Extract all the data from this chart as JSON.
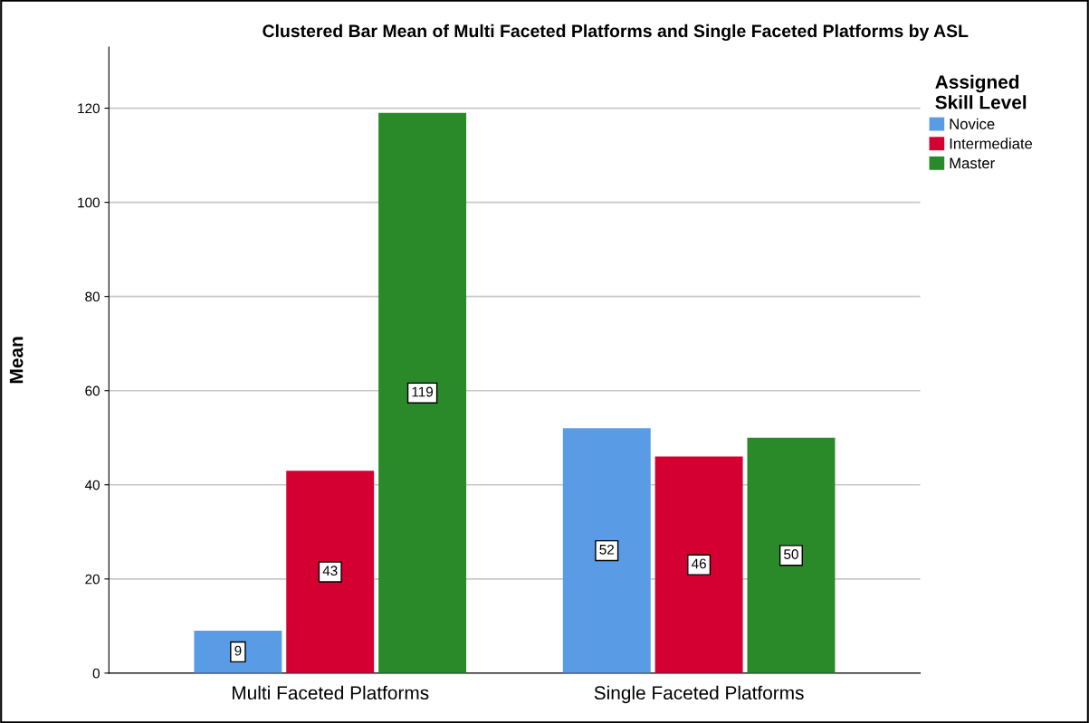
{
  "chart_data": {
    "type": "bar",
    "title": "Clustered Bar Mean of Multi Faceted Platforms and Single Faceted Platforms by ASL",
    "ylabel": "Mean",
    "legend_title": "Assigned\nSkill Level",
    "categories": [
      "Multi Faceted Platforms",
      "Single Faceted Platforms"
    ],
    "series": [
      {
        "name": "Novice",
        "color": "#5a9be6",
        "values": [
          9,
          52
        ]
      },
      {
        "name": "Intermediate",
        "color": "#d50032",
        "values": [
          43,
          46
        ]
      },
      {
        "name": "Master",
        "color": "#2a8a2a",
        "values": [
          119,
          50
        ]
      }
    ],
    "ylim": [
      0,
      133
    ],
    "yticks": [
      0,
      20,
      40,
      60,
      80,
      100,
      120
    ],
    "grid": "y",
    "legend": "top right",
    "data_labels": true
  }
}
